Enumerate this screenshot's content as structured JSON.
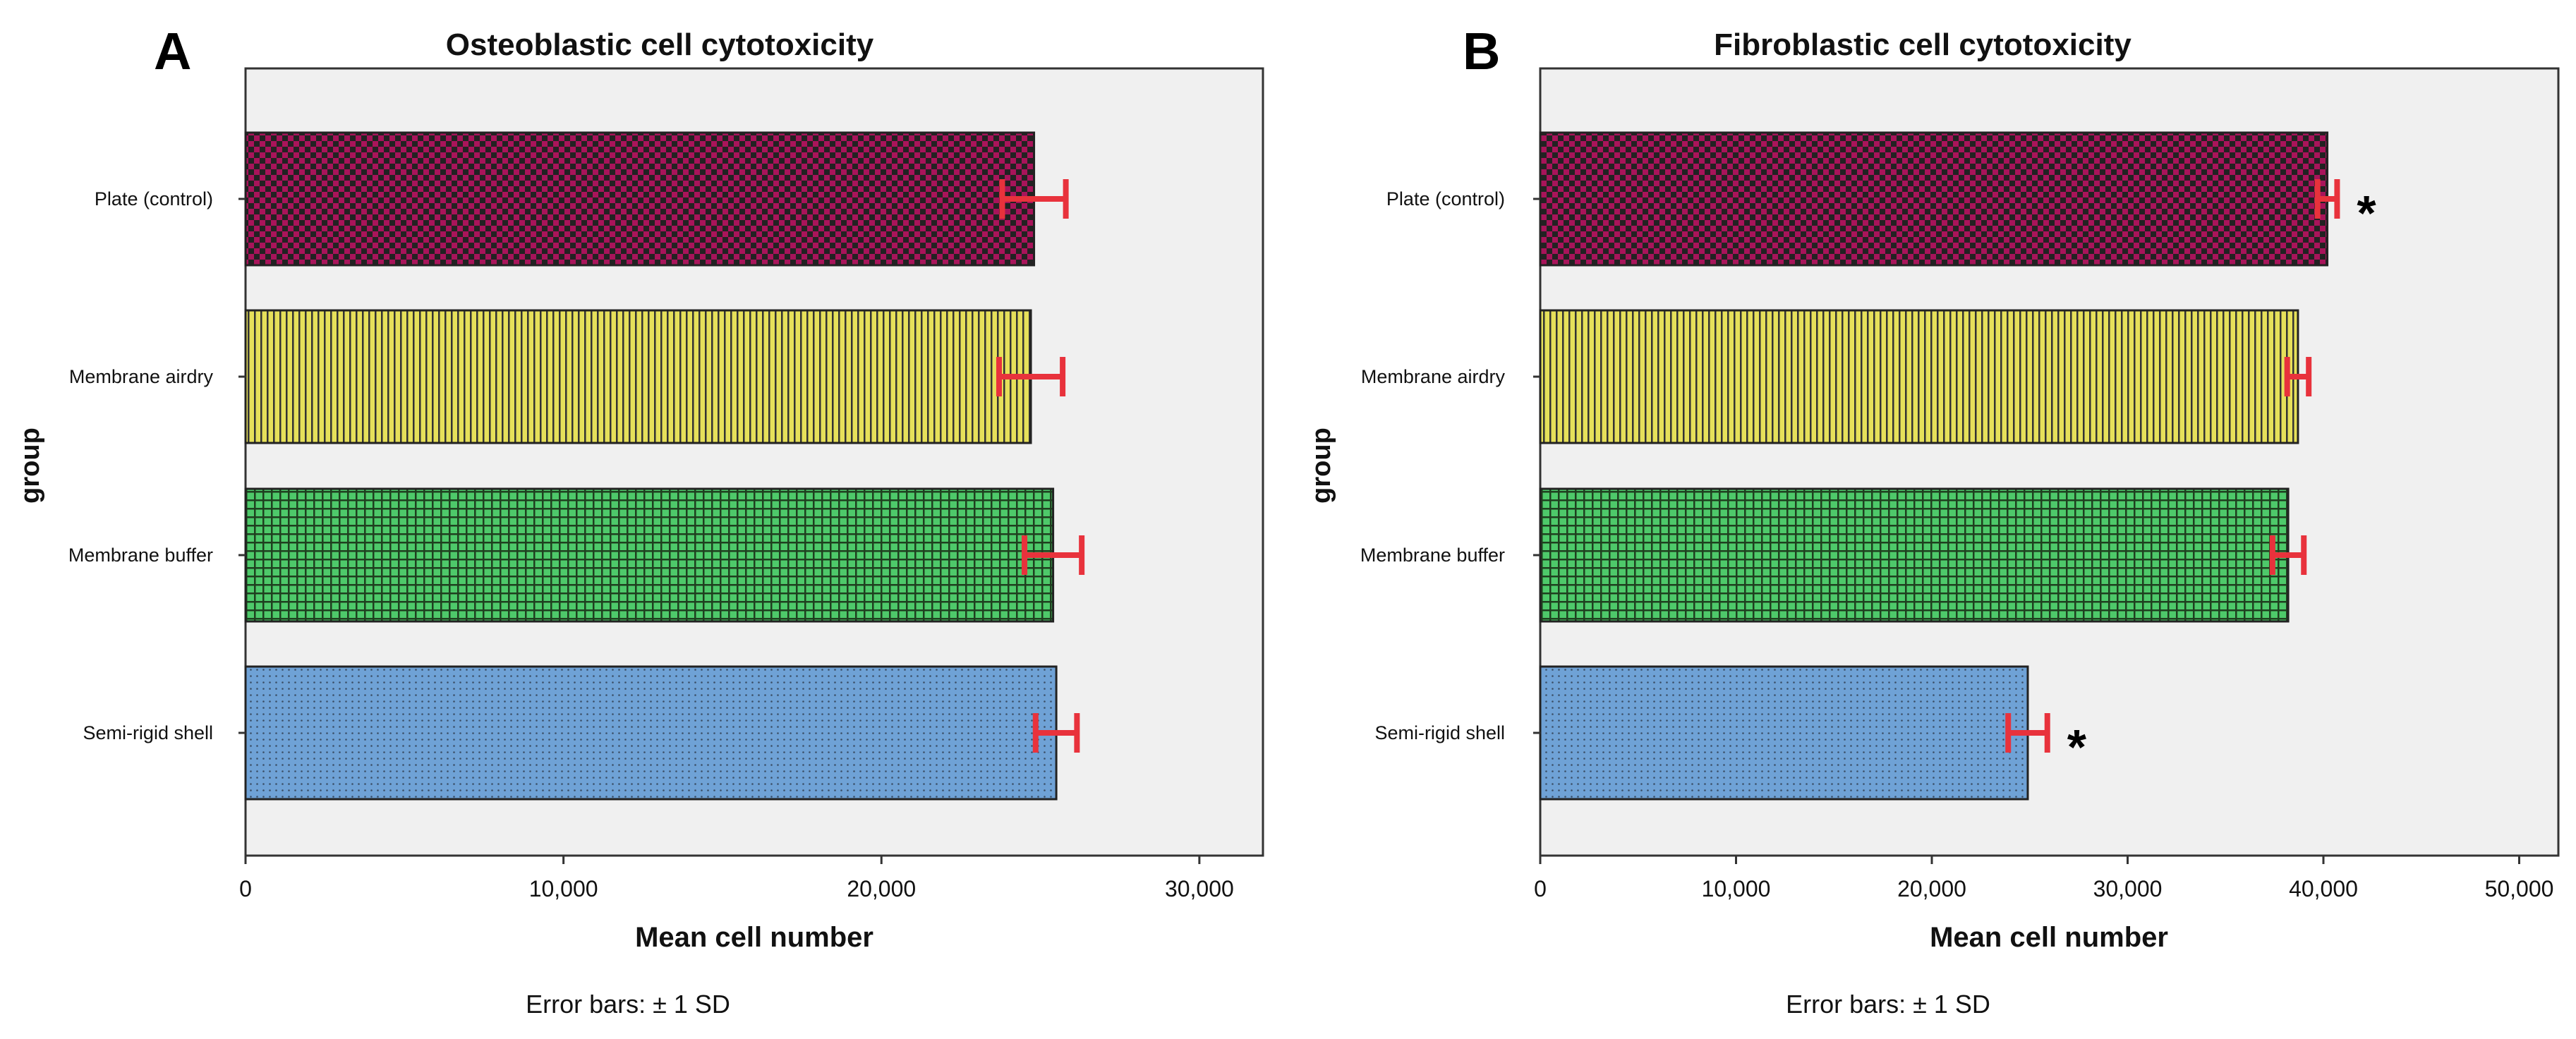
{
  "chart_data": [
    {
      "type": "bar",
      "orientation": "horizontal",
      "panel": "A",
      "title": "Osteoblastic cell cytotoxicity",
      "xlabel": "Mean cell number",
      "ylabel": "group",
      "categories": [
        "Plate (control)",
        "Membrane airdry",
        "Membrane  buffer",
        "Semi-rigid shell"
      ],
      "values": [
        24800,
        24700,
        25400,
        25500
      ],
      "error_sd": [
        1000,
        1000,
        900,
        650
      ],
      "significant": [
        false,
        false,
        false,
        false
      ],
      "significance_marker": "*",
      "xlim": [
        0,
        32000
      ],
      "xticks": [
        0,
        10000,
        20000,
        30000
      ],
      "xtick_labels": [
        "0",
        "10,000",
        "20,000",
        "30,000"
      ],
      "colors": [
        "#a8145a",
        "#e6e05a",
        "#4ec96a",
        "#6fa2d6"
      ],
      "patterns": [
        "checker",
        "vertical",
        "grid",
        "dots"
      ],
      "error_color": "#e8323c",
      "footnote": "Error bars: ± 1  SD"
    },
    {
      "type": "bar",
      "orientation": "horizontal",
      "panel": "B",
      "title": "Fibroblastic cell cytotoxicity",
      "xlabel": "Mean cell number",
      "ylabel": "group",
      "categories": [
        "Plate (control)",
        "Membrane airdry",
        "Membrane  buffer",
        "Semi-rigid shell"
      ],
      "values": [
        40200,
        38700,
        38200,
        24900
      ],
      "error_sd": [
        500,
        550,
        800,
        1000
      ],
      "significant": [
        true,
        false,
        false,
        true
      ],
      "significance_marker": "*",
      "xlim": [
        0,
        52000
      ],
      "xticks": [
        0,
        10000,
        20000,
        30000,
        40000,
        50000
      ],
      "xtick_labels": [
        "0",
        "10,000",
        "20,000",
        "30,000",
        "40,000",
        "50,000"
      ],
      "colors": [
        "#a8145a",
        "#e6e05a",
        "#4ec96a",
        "#6fa2d6"
      ],
      "patterns": [
        "checker",
        "vertical",
        "grid",
        "dots"
      ],
      "error_color": "#e8323c",
      "footnote": "Error bars: ± 1  SD"
    }
  ]
}
